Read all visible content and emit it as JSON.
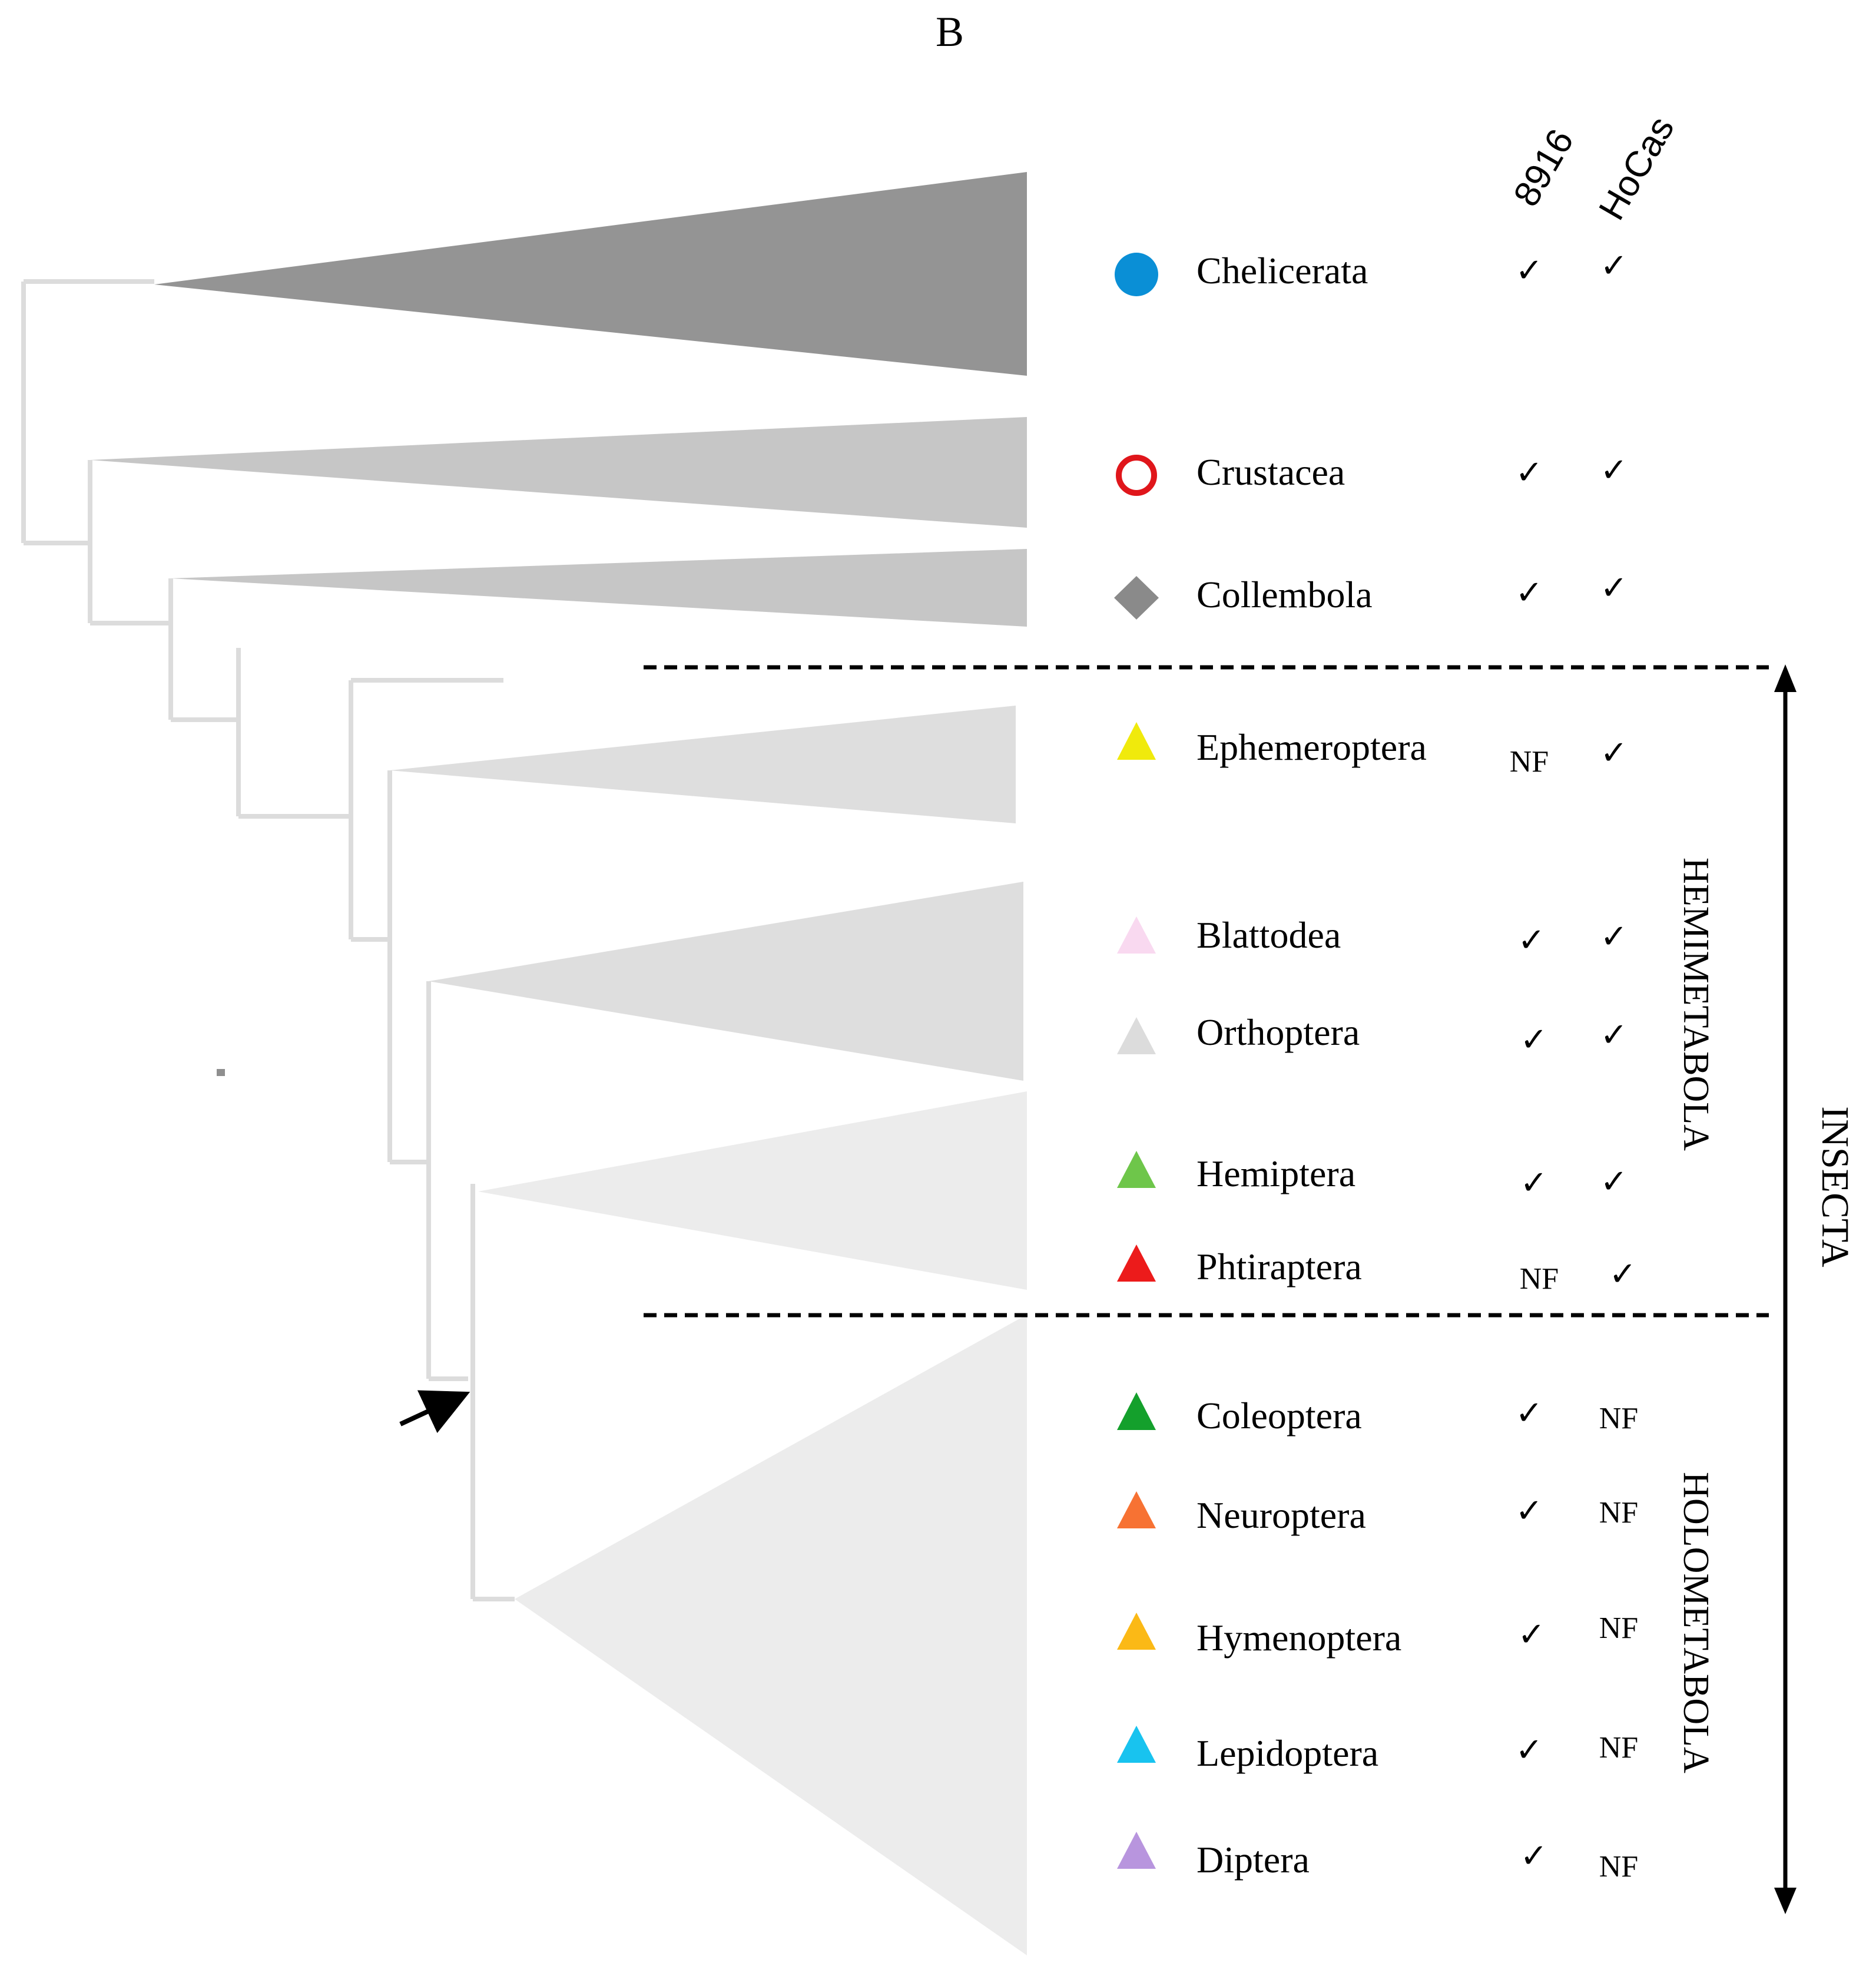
{
  "panel_label": "B",
  "column_headers": [
    "8916",
    "HoCas"
  ],
  "groups": {
    "hemimetabola": "HEMIMETABOLA",
    "holometabola": "HOLOMETABOLA",
    "insecta": "INSECTA"
  },
  "colors": {
    "clade_dark": "#949494",
    "clade_mid": "#c6c6c6",
    "clade_light": "#dedede",
    "clade_lighter": "#ececec",
    "branch": "#dcdcdc"
  },
  "taxa": [
    {
      "name": "Chelicerata",
      "marker": "filled-circle",
      "color": "#0a8fd6",
      "col_8916": "✓",
      "col_hocas": "✓"
    },
    {
      "name": "Crustacea",
      "marker": "open-circle",
      "color": "#e0161b",
      "col_8916": "✓",
      "col_hocas": "✓"
    },
    {
      "name": "Collembola",
      "marker": "diamond",
      "color": "#8a8a8a",
      "col_8916": "✓",
      "col_hocas": "✓"
    },
    {
      "name": "Ephemeroptera",
      "marker": "triangle",
      "color": "#f0ea0c",
      "col_8916": "NF",
      "col_hocas": "✓"
    },
    {
      "name": "Blattodea",
      "marker": "triangle",
      "color": "#f9d9f0",
      "col_8916": "✓",
      "col_hocas": "✓"
    },
    {
      "name": "Orthoptera",
      "marker": "triangle",
      "color": "#dcdcdc",
      "col_8916": "✓",
      "col_hocas": "✓"
    },
    {
      "name": "Hemiptera",
      "marker": "triangle",
      "color": "#6ec64a",
      "col_8916": "✓",
      "col_hocas": "✓"
    },
    {
      "name": "Phtiraptera",
      "marker": "triangle",
      "color": "#ec1b1b",
      "col_8916": "NF",
      "col_hocas": "✓"
    },
    {
      "name": "Coleoptera",
      "marker": "triangle",
      "color": "#14a02c",
      "col_8916": "✓",
      "col_hocas": "NF"
    },
    {
      "name": "Neuroptera",
      "marker": "triangle",
      "color": "#f77233",
      "col_8916": "✓",
      "col_hocas": "NF"
    },
    {
      "name": "Hymenoptera",
      "marker": "triangle",
      "color": "#fbb916",
      "col_8916": "✓",
      "col_hocas": "NF"
    },
    {
      "name": "Lepidoptera",
      "marker": "triangle",
      "color": "#18c3ef",
      "col_8916": "✓",
      "col_hocas": "NF"
    },
    {
      "name": "Diptera",
      "marker": "triangle",
      "color": "#b895de",
      "col_8916": "✓",
      "col_hocas": "NF"
    }
  ]
}
